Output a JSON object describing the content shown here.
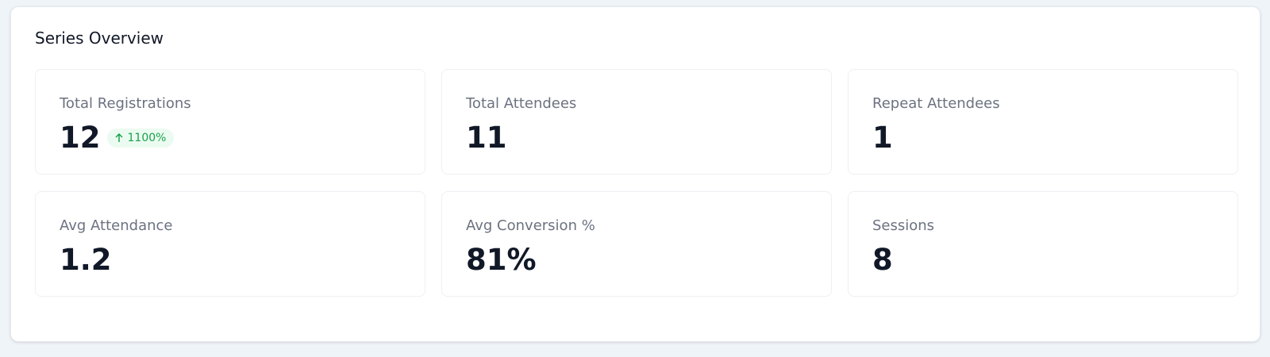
{
  "header": {
    "title": "Series Overview"
  },
  "stats": [
    {
      "label": "Total Registrations",
      "value": "12",
      "badge": "1100%"
    },
    {
      "label": "Total Attendees",
      "value": "11"
    },
    {
      "label": "Repeat Attendees",
      "value": "1"
    },
    {
      "label": "Avg Attendance",
      "value": "1.2"
    },
    {
      "label": "Avg Conversion %",
      "value": "81%"
    },
    {
      "label": "Sessions",
      "value": "8"
    }
  ]
}
